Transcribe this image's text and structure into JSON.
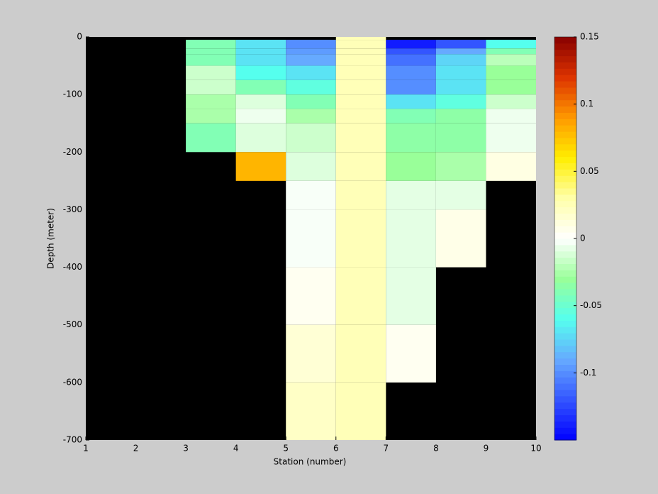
{
  "chart_data": {
    "type": "heatmap",
    "xlabel": "Station (number)",
    "ylabel": "Depth (meter)",
    "x_edges": [
      1,
      2,
      3,
      4,
      5,
      6,
      7,
      8,
      9,
      10
    ],
    "y_edges": [
      0,
      -5,
      -20,
      -30,
      -50,
      -75,
      -100,
      -125,
      -150,
      -200,
      -250,
      -300,
      -400,
      -500,
      -600,
      -700
    ],
    "values": [
      [
        null,
        null,
        null,
        null,
        null,
        0.025,
        null,
        null,
        null
      ],
      [
        null,
        null,
        -0.04,
        -0.07,
        -0.1,
        0.025,
        -0.14,
        -0.12,
        -0.06
      ],
      [
        null,
        null,
        -0.04,
        -0.07,
        -0.095,
        0.025,
        -0.12,
        -0.09,
        -0.04
      ],
      [
        null,
        null,
        -0.04,
        -0.07,
        -0.09,
        0.025,
        -0.11,
        -0.075,
        -0.02
      ],
      [
        null,
        null,
        -0.015,
        -0.06,
        -0.07,
        0.025,
        -0.1,
        -0.07,
        -0.03
      ],
      [
        null,
        null,
        -0.015,
        -0.04,
        -0.055,
        0.025,
        -0.1,
        -0.07,
        -0.03
      ],
      [
        null,
        null,
        -0.025,
        -0.01,
        -0.04,
        0.025,
        -0.07,
        -0.055,
        -0.015
      ],
      [
        null,
        null,
        -0.025,
        -0.005,
        -0.025,
        0.025,
        -0.04,
        -0.035,
        -0.005
      ],
      [
        null,
        null,
        -0.04,
        -0.01,
        -0.015,
        0.025,
        -0.035,
        -0.035,
        -0.005
      ],
      [
        null,
        null,
        null,
        0.08,
        -0.01,
        0.025,
        -0.03,
        -0.025,
        0.01
      ],
      [
        null,
        null,
        null,
        null,
        -0.002,
        0.025,
        -0.008,
        -0.008,
        null
      ],
      [
        null,
        null,
        null,
        null,
        -0.002,
        0.025,
        -0.008,
        0.008,
        null
      ],
      [
        null,
        null,
        null,
        null,
        0.005,
        0.025,
        -0.008,
        null,
        null
      ],
      [
        null,
        null,
        null,
        null,
        0.015,
        0.025,
        0.005,
        null,
        null
      ],
      [
        null,
        null,
        null,
        null,
        0.02,
        0.025,
        null,
        null,
        null
      ]
    ],
    "xlim": [
      1,
      10
    ],
    "ylim": [
      -700,
      0
    ],
    "xticks": [
      1,
      2,
      3,
      4,
      5,
      6,
      7,
      8,
      9,
      10
    ],
    "yticks": [
      0,
      -100,
      -200,
      -300,
      -400,
      -500,
      -600,
      -700
    ],
    "clim": [
      -0.15,
      0.15
    ],
    "cticks": [
      0.15,
      0.1,
      0.05,
      0,
      -0.05,
      -0.1
    ],
    "colormap": [
      "#0000ff",
      "#3355ff",
      "#66aaff",
      "#55ffee",
      "#99ff99",
      "#ffffff",
      "#ffffaa",
      "#ffee00",
      "#ff9900",
      "#dd3300",
      "#880000"
    ],
    "nan_color": "#000000"
  }
}
